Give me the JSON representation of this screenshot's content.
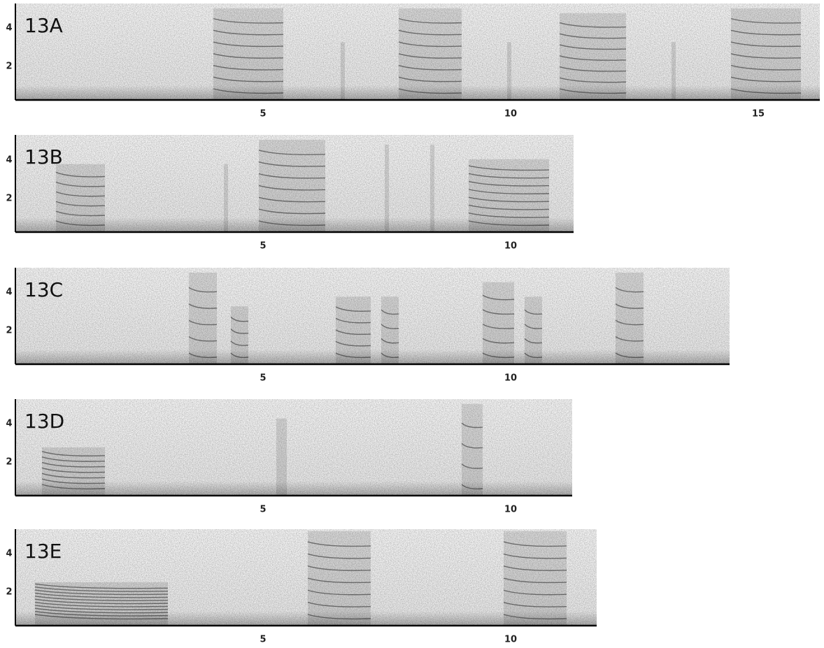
{
  "panels": [
    {
      "label": "13A",
      "yticks": [
        2,
        4
      ],
      "xticks": [
        5,
        10,
        15
      ]
    },
    {
      "label": "13B",
      "yticks": [
        2,
        4
      ],
      "xticks": [
        5,
        10
      ]
    },
    {
      "label": "13C",
      "yticks": [
        2,
        4
      ],
      "xticks": [
        5,
        10
      ]
    },
    {
      "label": "13D",
      "yticks": [
        2,
        4
      ],
      "xticks": [
        5,
        10
      ]
    },
    {
      "label": "13E",
      "yticks": [
        2,
        4
      ],
      "xticks": [
        5,
        10
      ]
    }
  ]
}
